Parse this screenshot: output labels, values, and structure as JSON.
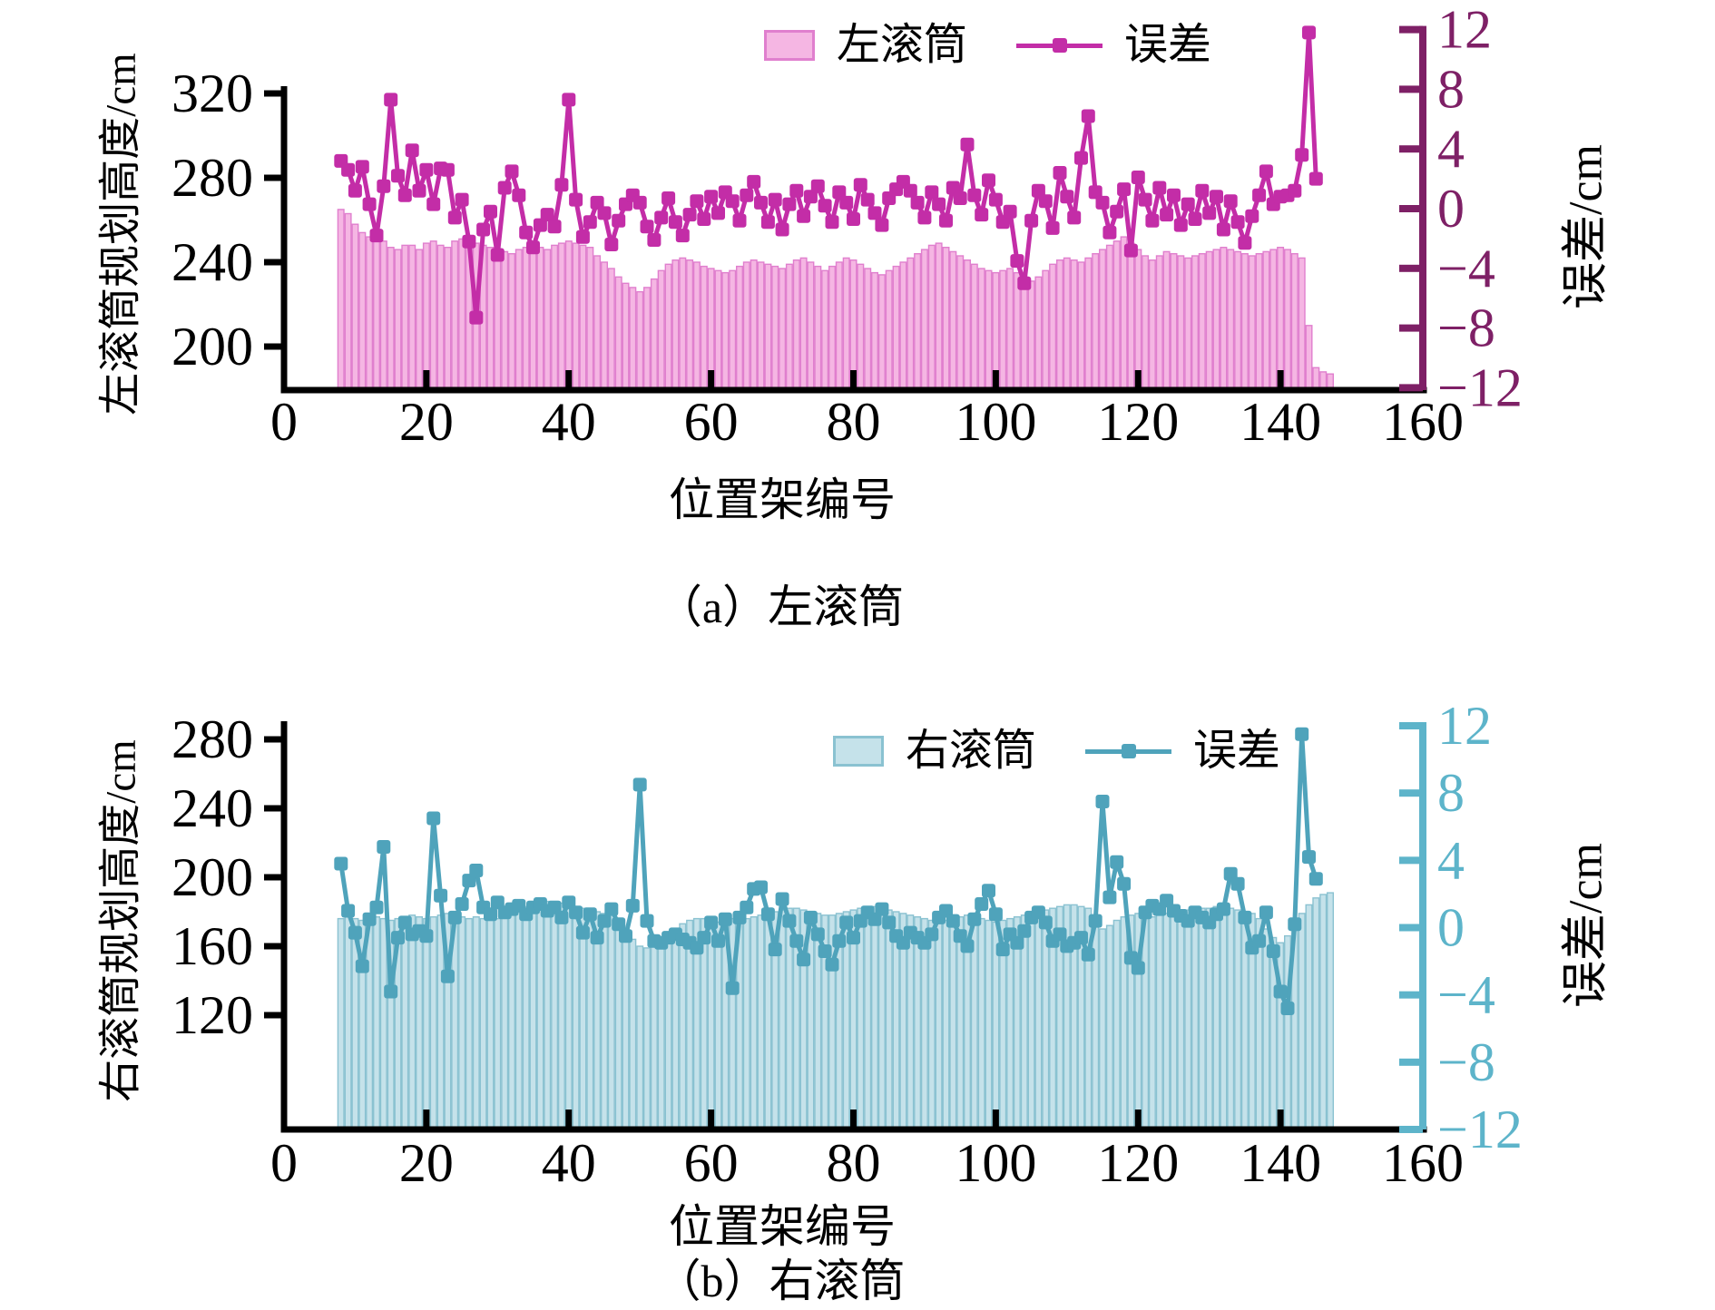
{
  "chart_data": [
    {
      "type": "bar+line",
      "panel": "a",
      "caption": "（a）左滚筒",
      "xlabel": "位置架编号",
      "ylabel_left": "左滚筒规划高度/cm",
      "ylabel_right": "误差/cm",
      "legend": {
        "bar": "左滚筒",
        "line": "误差"
      },
      "legend_position": "above-plot",
      "grid": false,
      "xlim": [
        0,
        160
      ],
      "xticks": [
        0,
        20,
        40,
        60,
        80,
        100,
        120,
        140,
        160
      ],
      "yticks_left": [
        320,
        280,
        240,
        200
      ],
      "yticks_right": [
        12,
        8,
        4,
        0,
        -4,
        -8,
        -12
      ],
      "ylim_right": [
        -12,
        12
      ],
      "x_first": 8,
      "bars": [
        265,
        263,
        258,
        254,
        252,
        251,
        250,
        247,
        246,
        248,
        248,
        246,
        249,
        250,
        248,
        247,
        250,
        251,
        250,
        249,
        248,
        247,
        246,
        245,
        244,
        246,
        247,
        248,
        247,
        246,
        248,
        249,
        250,
        249,
        248,
        247,
        243,
        240,
        237,
        233,
        230,
        228,
        226,
        228,
        232,
        236,
        239,
        241,
        242,
        241,
        240,
        238,
        237,
        236,
        235,
        236,
        238,
        240,
        241,
        240,
        239,
        238,
        237,
        239,
        241,
        242,
        240,
        238,
        236,
        238,
        240,
        242,
        241,
        239,
        237,
        235,
        234,
        236,
        238,
        240,
        242,
        244,
        246,
        248,
        249,
        247,
        245,
        243,
        241,
        239,
        237,
        236,
        235,
        236,
        237,
        235,
        233,
        231,
        233,
        236,
        239,
        241,
        242,
        241,
        240,
        242,
        244,
        246,
        248,
        250,
        252,
        249,
        246,
        243,
        241,
        243,
        245,
        244,
        243,
        242,
        243,
        244,
        245,
        246,
        247,
        246,
        245,
        244,
        243,
        244,
        245,
        246,
        247,
        246,
        244,
        242,
        210,
        190,
        188,
        187
      ],
      "error": [
        3.2,
        2.6,
        1.2,
        2.8,
        0.3,
        -1.8,
        1.5,
        7.3,
        2.2,
        0.9,
        3.9,
        1.2,
        2.6,
        0.3,
        2.7,
        2.6,
        -0.6,
        0.6,
        -2.2,
        -7.3,
        -1.4,
        -0.2,
        -3.1,
        1.4,
        2.5,
        0.9,
        -1.6,
        -2.6,
        -1.1,
        -0.4,
        -1.2,
        1.6,
        7.3,
        0.6,
        -1.9,
        -0.9,
        0.4,
        -0.3,
        -2.4,
        -0.8,
        0.3,
        0.9,
        0.4,
        -1.2,
        -2.1,
        -0.6,
        0.7,
        -0.9,
        -1.8,
        -0.4,
        0.5,
        -0.7,
        0.8,
        -0.3,
        1.1,
        0.5,
        -0.8,
        0.9,
        1.8,
        0.4,
        -0.9,
        0.6,
        -1.4,
        0.3,
        1.2,
        -0.5,
        0.8,
        1.5,
        0.2,
        -0.9,
        1.1,
        0.4,
        -0.7,
        1.6,
        0.6,
        -0.3,
        -1.1,
        0.7,
        1.3,
        1.8,
        1.2,
        0.4,
        -0.6,
        1.1,
        0.3,
        -0.8,
        1.4,
        0.7,
        4.3,
        0.9,
        -0.4,
        1.9,
        0.6,
        -0.9,
        -0.2,
        -3.5,
        -5.0,
        -0.8,
        1.2,
        0.5,
        -1.3,
        2.4,
        0.8,
        -0.6,
        3.4,
        6.2,
        1.1,
        0.4,
        -1.6,
        -0.2,
        1.3,
        -2.8,
        2.1,
        0.6,
        -0.8,
        1.4,
        -0.4,
        0.9,
        -1.1,
        0.3,
        -0.7,
        1.2,
        -0.3,
        0.8,
        -1.4,
        0.5,
        -0.9,
        -2.3,
        -0.5,
        0.9,
        2.5,
        0.3,
        0.8,
        0.9,
        1.2,
        3.6,
        11.8,
        2.0,
        null,
        null
      ],
      "colors": {
        "bar_fill": "#f5b6e3",
        "bar_edge": "#e07fce",
        "line": "#c32da7",
        "right_axis": "#7e2066"
      }
    },
    {
      "type": "bar+line",
      "panel": "b",
      "caption": "（b）右滚筒",
      "xlabel": "位置架编号",
      "ylabel_left": "右滚筒规划高度/cm",
      "ylabel_right": "误差/cm",
      "legend": {
        "bar": "右滚筒",
        "line": "误差"
      },
      "legend_position": "inside-plot-top",
      "grid": false,
      "xlim": [
        0,
        160
      ],
      "xticks": [
        0,
        20,
        40,
        60,
        80,
        100,
        120,
        140,
        160
      ],
      "yticks_left": [
        280,
        240,
        200,
        160,
        120
      ],
      "yticks_right": [
        12,
        8,
        4,
        0,
        -4,
        -8,
        -12
      ],
      "ylim_right": [
        -12,
        12
      ],
      "x_first": 8,
      "bars": [
        176,
        177,
        176,
        175,
        176,
        177,
        176,
        175,
        176,
        177,
        178,
        177,
        176,
        177,
        178,
        179,
        178,
        177,
        176,
        177,
        176,
        175,
        176,
        177,
        179,
        181,
        183,
        184,
        185,
        186,
        186,
        185,
        184,
        183,
        182,
        181,
        180,
        179,
        178,
        176,
        170,
        164,
        160,
        159,
        160,
        162,
        165,
        169,
        173,
        175,
        176,
        176,
        175,
        174,
        175,
        176,
        175,
        176,
        177,
        178,
        179,
        180,
        181,
        182,
        182,
        181,
        180,
        179,
        178,
        178,
        179,
        180,
        181,
        182,
        183,
        183,
        182,
        181,
        180,
        179,
        178,
        177,
        176,
        175,
        174,
        175,
        176,
        177,
        178,
        177,
        176,
        175,
        174,
        175,
        176,
        177,
        178,
        179,
        180,
        181,
        182,
        183,
        184,
        184,
        183,
        182,
        174,
        170,
        172,
        175,
        177,
        178,
        179,
        178,
        177,
        178,
        179,
        180,
        180,
        181,
        181,
        182,
        182,
        183,
        183,
        182,
        181,
        180,
        179,
        176,
        170,
        165,
        162,
        166,
        173,
        179,
        184,
        188,
        190,
        191
      ],
      "error": [
        3.8,
        1.0,
        -0.3,
        -2.3,
        0.5,
        1.2,
        4.8,
        -3.8,
        -0.6,
        0.3,
        -0.4,
        -0.2,
        -0.5,
        6.5,
        1.9,
        -2.9,
        0.6,
        1.4,
        2.8,
        3.4,
        1.2,
        0.8,
        1.5,
        0.9,
        1.1,
        1.3,
        0.8,
        1.2,
        1.4,
        1.0,
        1.2,
        0.6,
        1.5,
        0.9,
        -0.3,
        0.8,
        -0.6,
        0.4,
        1.1,
        0.2,
        -0.5,
        1.3,
        8.5,
        0.4,
        -0.8,
        -0.9,
        -0.6,
        -0.4,
        -0.7,
        -0.9,
        -1.2,
        -0.6,
        0.3,
        -0.8,
        0.5,
        -3.6,
        0.6,
        1.2,
        2.3,
        2.4,
        0.8,
        -1.3,
        1.7,
        0.4,
        -0.8,
        -1.9,
        0.6,
        -0.4,
        -1.4,
        -2.2,
        -0.8,
        0.3,
        -0.6,
        0.4,
        0.9,
        0.5,
        1.1,
        0.3,
        -0.5,
        -0.9,
        -0.3,
        -0.6,
        -0.9,
        -0.4,
        0.6,
        1.0,
        0.4,
        -0.5,
        -1.1,
        0.5,
        1.4,
        2.2,
        0.8,
        -1.3,
        -0.4,
        -0.9,
        -0.2,
        0.6,
        0.9,
        0.3,
        -0.8,
        -0.4,
        -1.1,
        -0.9,
        -0.6,
        -1.6,
        0.4,
        7.5,
        1.8,
        3.9,
        2.6,
        -1.8,
        -2.4,
        0.9,
        1.3,
        1.1,
        1.6,
        1.0,
        0.7,
        0.4,
        0.9,
        0.6,
        0.3,
        0.8,
        1.1,
        3.2,
        2.6,
        0.6,
        -1.2,
        -0.8,
        0.9,
        -1.4,
        -3.8,
        -4.8,
        0.2,
        11.5,
        4.2,
        2.9,
        null,
        null
      ],
      "colors": {
        "bar_fill": "#c5e2ea",
        "bar_edge": "#8ac2d1",
        "line": "#4fa3bb",
        "right_axis": "#5db4ca"
      }
    }
  ]
}
